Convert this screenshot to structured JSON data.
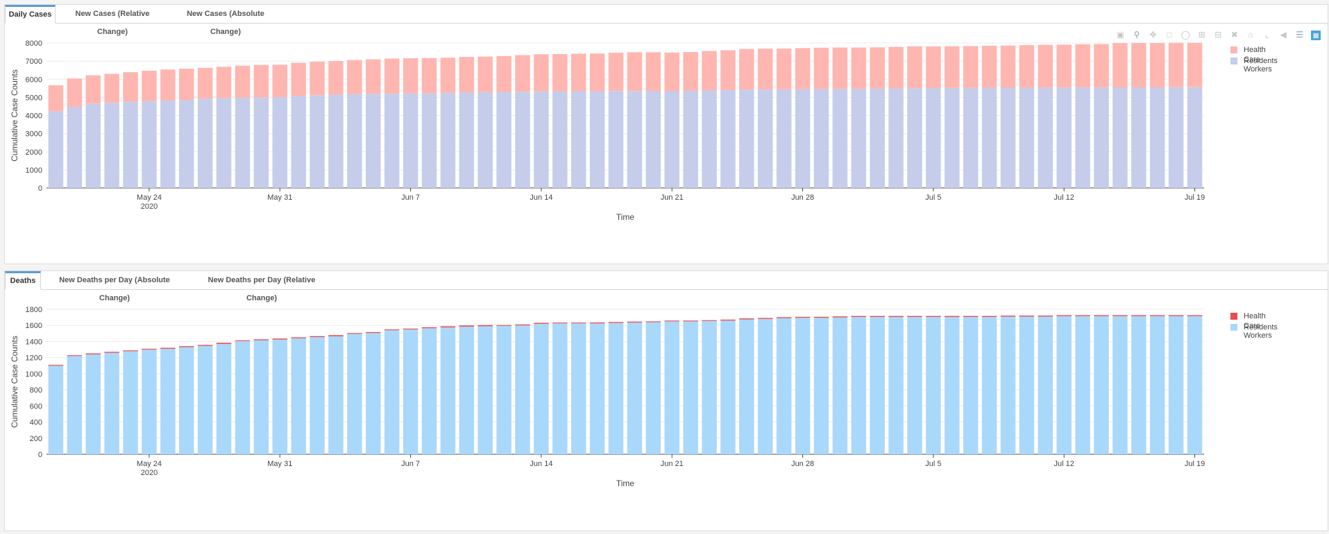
{
  "cases_panel": {
    "tabs": [
      {
        "label": "Daily Cases",
        "active": true
      },
      {
        "label": "New Cases (Relative Change)",
        "active": false
      },
      {
        "label": "New Cases (Absolute Change)",
        "active": false
      }
    ],
    "legend": [
      "Health Care Workers",
      "Residents"
    ],
    "modebar_icons": [
      "camera-icon",
      "zoom-icon",
      "pan-icon",
      "box-select-icon",
      "lasso-select-icon",
      "zoom-in-icon",
      "zoom-out-icon",
      "autoscale-icon",
      "reset-axes-icon",
      "spike-lines-icon",
      "hover-closest-icon",
      "hover-compare-icon",
      "plotly-logo-icon"
    ]
  },
  "deaths_panel": {
    "tabs": [
      {
        "label": "Deaths",
        "active": true
      },
      {
        "label": "New Deaths per Day (Absolute Change)",
        "active": false
      },
      {
        "label": "New Deaths per Day (Relative Change)",
        "active": false
      }
    ],
    "legend": [
      "Health Care Workers",
      "Residents"
    ]
  },
  "colors": {
    "cases_residents": "#c5cdea",
    "cases_hcw": "#ffb6b0",
    "deaths_residents": "#aad8fb",
    "deaths_hcw": "#ea4b4e"
  },
  "chart_data": [
    {
      "type": "bar",
      "stacked": true,
      "ylabel": "Cumulative Case Counts",
      "xlabel": "Time",
      "ylim": [
        0,
        8000
      ],
      "yticks": [
        0,
        1000,
        2000,
        3000,
        4000,
        5000,
        6000,
        7000,
        8000
      ],
      "x_start": "2020-05-19",
      "x_end": "2020-07-19",
      "xticks": [
        {
          "date": "2020-05-24",
          "label": "May 24",
          "sublabel": "2020"
        },
        {
          "date": "2020-05-31",
          "label": "May 31",
          "sublabel": ""
        },
        {
          "date": "2020-06-07",
          "label": "Jun 7",
          "sublabel": ""
        },
        {
          "date": "2020-06-14",
          "label": "Jun 14",
          "sublabel": ""
        },
        {
          "date": "2020-06-21",
          "label": "Jun 21",
          "sublabel": ""
        },
        {
          "date": "2020-06-28",
          "label": "Jun 28",
          "sublabel": ""
        },
        {
          "date": "2020-07-05",
          "label": "Jul 5",
          "sublabel": ""
        },
        {
          "date": "2020-07-12",
          "label": "Jul 12",
          "sublabel": ""
        },
        {
          "date": "2020-07-19",
          "label": "Jul 19",
          "sublabel": ""
        }
      ],
      "series": [
        {
          "name": "Residents",
          "values": [
            4230,
            4480,
            4640,
            4700,
            4760,
            4800,
            4840,
            4860,
            4930,
            4960,
            4980,
            5000,
            5010,
            5080,
            5120,
            5150,
            5180,
            5200,
            5210,
            5220,
            5230,
            5250,
            5280,
            5290,
            5300,
            5310,
            5330,
            5330,
            5340,
            5340,
            5350,
            5350,
            5340,
            5340,
            5360,
            5380,
            5400,
            5420,
            5430,
            5440,
            5450,
            5460,
            5470,
            5470,
            5480,
            5490,
            5500,
            5510,
            5520,
            5520,
            5530,
            5530,
            5530,
            5540,
            5540,
            5540,
            5540,
            5550,
            5550,
            5550,
            5560,
            5560
          ]
        },
        {
          "name": "Health Care Workers",
          "values": [
            1440,
            1560,
            1580,
            1600,
            1630,
            1670,
            1700,
            1720,
            1700,
            1730,
            1770,
            1790,
            1790,
            1830,
            1850,
            1850,
            1880,
            1900,
            1930,
            1940,
            1940,
            1940,
            1950,
            1960,
            1980,
            2020,
            2050,
            2060,
            2070,
            2080,
            2110,
            2140,
            2150,
            2130,
            2140,
            2180,
            2200,
            2250,
            2260,
            2250,
            2270,
            2280,
            2280,
            2280,
            2280,
            2300,
            2320,
            2300,
            2300,
            2310,
            2320,
            2330,
            2350,
            2360,
            2370,
            2390,
            2400,
            2440,
            2450,
            2450,
            2450,
            2450
          ]
        }
      ]
    },
    {
      "type": "bar",
      "stacked": true,
      "ylabel": "Cumulative Case Counts",
      "xlabel": "Time",
      "ylim": [
        0,
        1800
      ],
      "yticks": [
        0,
        200,
        400,
        600,
        800,
        1000,
        1200,
        1400,
        1600,
        1800
      ],
      "x_start": "2020-05-19",
      "x_end": "2020-07-19",
      "xticks": [
        {
          "date": "2020-05-24",
          "label": "May 24",
          "sublabel": "2020"
        },
        {
          "date": "2020-05-31",
          "label": "May 31",
          "sublabel": ""
        },
        {
          "date": "2020-06-07",
          "label": "Jun 7",
          "sublabel": ""
        },
        {
          "date": "2020-06-14",
          "label": "Jun 14",
          "sublabel": ""
        },
        {
          "date": "2020-06-21",
          "label": "Jun 21",
          "sublabel": ""
        },
        {
          "date": "2020-06-28",
          "label": "Jun 28",
          "sublabel": ""
        },
        {
          "date": "2020-07-05",
          "label": "Jul 5",
          "sublabel": ""
        },
        {
          "date": "2020-07-12",
          "label": "Jul 12",
          "sublabel": ""
        },
        {
          "date": "2020-07-19",
          "label": "Jul 19",
          "sublabel": ""
        }
      ],
      "series": [
        {
          "name": "Residents",
          "values": [
            1100,
            1220,
            1240,
            1260,
            1280,
            1300,
            1310,
            1330,
            1345,
            1370,
            1405,
            1415,
            1425,
            1440,
            1455,
            1465,
            1495,
            1505,
            1540,
            1550,
            1565,
            1575,
            1585,
            1590,
            1595,
            1600,
            1620,
            1625,
            1625,
            1625,
            1630,
            1635,
            1640,
            1650,
            1650,
            1655,
            1660,
            1675,
            1680,
            1690,
            1695,
            1695,
            1700,
            1705,
            1705,
            1705,
            1705,
            1705,
            1705,
            1705,
            1705,
            1710,
            1710,
            1710,
            1715,
            1715,
            1715,
            1715,
            1715,
            1715,
            1715,
            1715
          ]
        },
        {
          "name": "Health Care Workers",
          "values": [
            10,
            10,
            12,
            12,
            10,
            10,
            12,
            12,
            12,
            14,
            10,
            12,
            12,
            12,
            12,
            14,
            10,
            12,
            10,
            10,
            12,
            14,
            14,
            14,
            10,
            12,
            12,
            10,
            10,
            12,
            12,
            12,
            10,
            10,
            10,
            10,
            12,
            12,
            12,
            12,
            12,
            12,
            12,
            12,
            12,
            12,
            12,
            12,
            12,
            12,
            12,
            12,
            12,
            12,
            12,
            12,
            12,
            12,
            12,
            12,
            12,
            12
          ]
        }
      ]
    }
  ],
  "text": {
    "date_tick_sublabel": "2020"
  }
}
